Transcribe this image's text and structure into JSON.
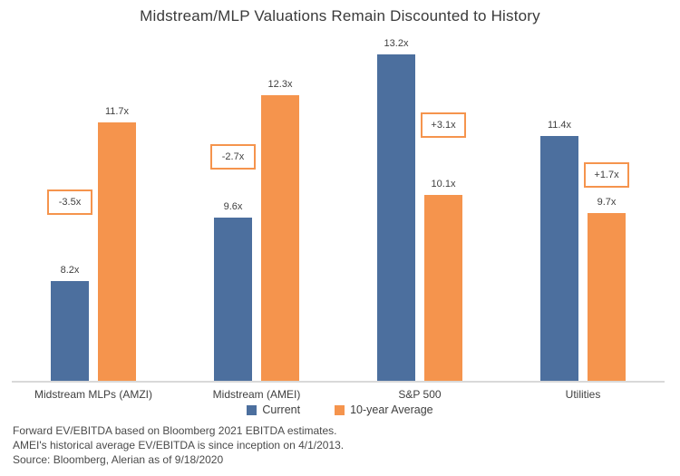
{
  "title": "Midstream/MLP Valuations Remain Discounted to History",
  "chart_data": {
    "type": "bar",
    "title": "Midstream/MLP Valuations Remain Discounted to History",
    "categories": [
      "Midstream MLPs (AMZI)",
      "Midstream (AMEI)",
      "S&P 500",
      "Utilities"
    ],
    "series": [
      {
        "name": "Current",
        "color": "#4c6f9e",
        "values": [
          8.2,
          9.6,
          13.2,
          11.4
        ]
      },
      {
        "name": "10-year Average",
        "color": "#f5944d",
        "values": [
          11.7,
          12.3,
          10.1,
          9.7
        ]
      }
    ],
    "diff_labels": [
      "-3.5x",
      "-2.7x",
      "+3.1x",
      "+1.7x"
    ],
    "value_suffix": "x",
    "ylim": [
      6,
      13.5
    ],
    "grid": false,
    "legend_position": "bottom",
    "xlabel": "",
    "ylabel": ""
  },
  "footnotes": [
    "Forward EV/EBITDA based on Bloomberg 2021 EBITDA estimates.",
    "AMEI's historical average EV/EBITDA is since inception on 4/1/2013.",
    "Source: Bloomberg, Alerian as of 9/18/2020"
  ],
  "colors": {
    "current": "#4c6f9e",
    "average": "#f5944d",
    "diff_box_border": "#f5944d",
    "text": "#3f3f3f",
    "axis_line": "#d9d9d9"
  }
}
